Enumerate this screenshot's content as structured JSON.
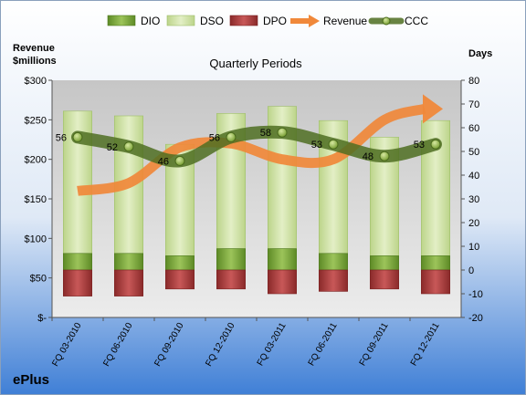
{
  "chart_data": {
    "type": "bar",
    "subtitle": "Quarterly Periods",
    "company": "ePlus",
    "y_left_label_line1": "Revenue",
    "y_left_label_line2": "$millions",
    "y_right_label": "Days",
    "y_left_range": [
      0,
      300
    ],
    "y_right_range": [
      -20,
      80
    ],
    "y_left_ticks": [
      "$-",
      "$50",
      "$100",
      "$150",
      "$200",
      "$250",
      "$300"
    ],
    "y_left_tick_values": [
      0,
      50,
      100,
      150,
      200,
      250,
      300
    ],
    "y_right_ticks": [
      "-20",
      "-10",
      "0",
      "10",
      "20",
      "30",
      "40",
      "50",
      "60",
      "70",
      "80"
    ],
    "y_right_tick_values": [
      -20,
      -10,
      0,
      10,
      20,
      30,
      40,
      50,
      60,
      70,
      80
    ],
    "categories": [
      "FQ 03-2010",
      "FQ 06-2010",
      "FQ 09-2010",
      "FQ 12-2010",
      "FQ 03-2011",
      "FQ 06-2011",
      "FQ 09-2011",
      "FQ 12-2011"
    ],
    "legend": [
      "DIO",
      "DSO",
      "DPO",
      "Revenue",
      "CCC"
    ],
    "legend_position": "top",
    "grid": false,
    "series": [
      {
        "name": "DIO",
        "axis": "right",
        "values": [
          7,
          7,
          6,
          9,
          9,
          7,
          6,
          6
        ],
        "color": "#7aa03a"
      },
      {
        "name": "DSO",
        "axis": "right",
        "values": [
          60,
          58,
          47,
          57,
          60,
          56,
          50,
          57
        ],
        "color": "#cfe2a4"
      },
      {
        "name": "DPO",
        "axis": "right",
        "values": [
          -11,
          -11,
          -8,
          -8,
          -10,
          -9,
          -8,
          -10
        ],
        "color": "#a83a3a"
      },
      {
        "name": "Revenue",
        "axis": "left",
        "values": [
          160,
          170,
          215,
          220,
          200,
          200,
          250,
          265
        ],
        "color": "#f0883a"
      },
      {
        "name": "CCC",
        "axis": "right",
        "values": [
          56,
          52,
          46,
          56,
          58,
          53,
          48,
          53
        ],
        "color": "#5a7a2a"
      }
    ],
    "data_labels": [
      "56",
      "52",
      "46",
      "56",
      "58",
      "53",
      "48",
      "53"
    ]
  }
}
